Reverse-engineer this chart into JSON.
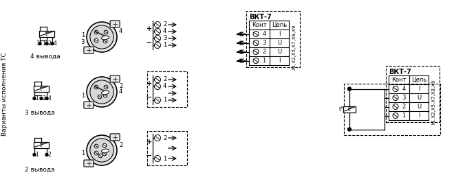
{
  "bg_color": "#ffffff",
  "fig_width": 6.76,
  "fig_height": 2.74,
  "dpi": 100,
  "lc": "#000000",
  "vertical_label": "Варианты исполнения ТС",
  "row1_label": "4 вывода",
  "row2_label": "3 вывода",
  "row3_label": "2 вывода",
  "table_title": "ВКТ-7",
  "table_col1": "Конт",
  "table_col2": "Цепь",
  "table_rows": [
    [
      "4",
      "I"
    ],
    [
      "3",
      "U"
    ],
    [
      "2",
      "U"
    ],
    [
      "1",
      "I"
    ]
  ],
  "table_side": "X1,X2,X5,X7,X8,X9",
  "t_label": "t°"
}
